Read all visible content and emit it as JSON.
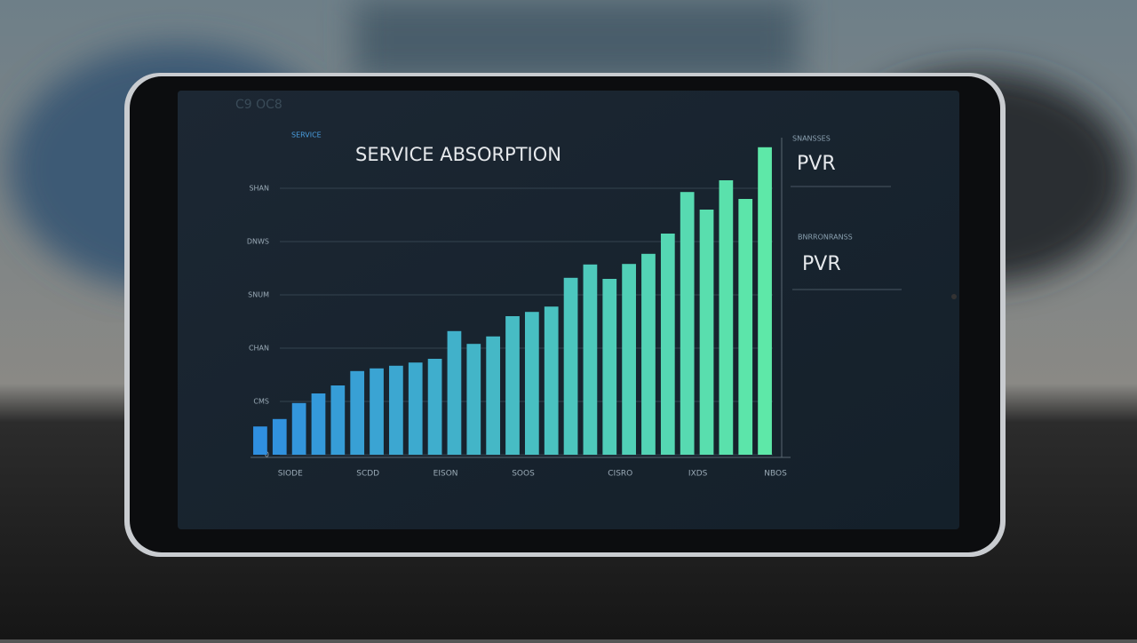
{
  "header": "C9 OC8",
  "chart_data": {
    "type": "bar",
    "title": "SERVICE ABSORPTION",
    "subtitle": "SERVICE",
    "categories": [
      null,
      "SIODE",
      null,
      null,
      null,
      "SCDD",
      null,
      null,
      null,
      "EISON",
      null,
      null,
      null,
      "SOOS",
      null,
      null,
      null,
      null,
      "CISRO",
      null,
      null,
      null,
      "IXDS",
      null,
      null,
      null,
      "NBOS"
    ],
    "values": [
      0.53,
      0.67,
      0.97,
      1.15,
      1.3,
      1.57,
      1.62,
      1.67,
      1.73,
      1.8,
      2.32,
      2.08,
      2.22,
      2.6,
      2.68,
      2.78,
      3.32,
      3.57,
      3.3,
      3.58,
      3.77,
      4.15,
      4.93,
      4.6,
      5.15,
      4.8,
      5.77
    ],
    "gradient": [
      "#2f8fe0",
      "#5ee8a8"
    ],
    "ylim": [
      0,
      6
    ],
    "yticks": [
      0,
      {
        "value": 1,
        "label": "CMS"
      },
      {
        "value": 2,
        "label": "CHAN"
      },
      {
        "value": 3,
        "label": "SNUM"
      },
      {
        "value": 4,
        "label": "DNWS"
      },
      {
        "value": 5,
        "label": "SHAN"
      }
    ],
    "grid": true
  },
  "panel": [
    {
      "label": "SNANSSES",
      "value": "PVR"
    },
    {
      "label": "BNRRONRANSS",
      "value": "PVR"
    }
  ]
}
